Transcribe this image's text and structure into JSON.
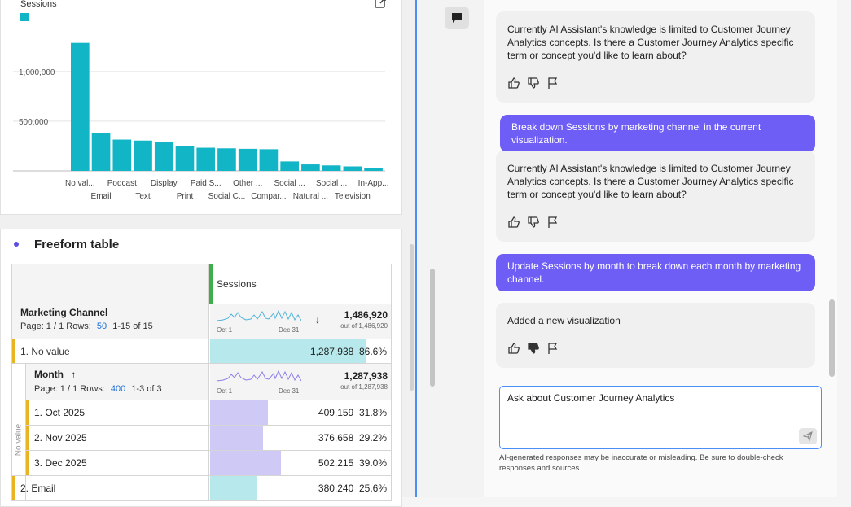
{
  "chart": {
    "title": "Sessions",
    "color": "#12b5c6"
  },
  "chart_data": {
    "type": "bar",
    "title": "Sessions",
    "xlabel": "",
    "ylabel": "",
    "ylim": [
      0,
      1400000
    ],
    "yticks": [
      500000,
      1000000
    ],
    "ytick_labels": [
      "500,000",
      "1,000,000"
    ],
    "categories": [
      "No val...",
      "Email",
      "Podcast",
      "Text",
      "Display",
      "Print",
      "Paid S...",
      "Social C...",
      "Other ...",
      "Compar...",
      "Social ...",
      "Natural ...",
      "Social ...",
      "Television",
      "In-App..."
    ],
    "values": [
      1287938,
      380240,
      315000,
      305000,
      292000,
      250000,
      233000,
      227000,
      222000,
      218000,
      95000,
      65000,
      55000,
      45000,
      30000
    ],
    "series": [
      {
        "name": "Sessions",
        "values": [
          1287938,
          380240,
          315000,
          305000,
          292000,
          250000,
          233000,
          227000,
          222000,
          218000,
          95000,
          65000,
          55000,
          45000,
          30000
        ]
      }
    ],
    "grid": true,
    "legend": "top-left"
  },
  "freeform": {
    "title": "Freeform table",
    "column_header": "Sessions",
    "dimension": {
      "name": "Marketing Channel",
      "page_label": "Page: 1 / 1 Rows:",
      "rows_value": "50",
      "range": "1-15 of 15",
      "spark_start": "Oct 1",
      "spark_end": "Dec 31",
      "total": "1,486,920",
      "total_of": "out of 1,486,920"
    },
    "rows": [
      {
        "label": "1. No value",
        "value": "1,287,938",
        "pct": "86.6%",
        "fraction": 0.866
      }
    ],
    "breakdown": {
      "name": "Month",
      "page_label": "Page: 1 / 1 Rows:",
      "rows_value": "400",
      "range": "1-3 of 3",
      "spark_start": "Oct 1",
      "spark_end": "Dec 31",
      "total": "1,287,938",
      "total_of": "out of 1,287,938",
      "side_label": "No value",
      "rows": [
        {
          "label": "1. Oct 2025",
          "value": "409,159",
          "pct": "31.8%",
          "fraction": 0.318
        },
        {
          "label": "2. Nov 2025",
          "value": "376,658",
          "pct": "29.2%",
          "fraction": 0.292
        },
        {
          "label": "3. Dec 2025",
          "value": "502,215",
          "pct": "39.0%",
          "fraction": 0.39
        }
      ]
    },
    "row2": {
      "label": "2. Email",
      "value": "380,240",
      "pct": "25.6%",
      "fraction": 0.256
    }
  },
  "assistant": {
    "messages": [
      {
        "role": "assistant",
        "text": "Currently AI Assistant's knowledge is limited to Customer Journey Analytics concepts. Is there a Customer Journey Analytics specific term or concept you'd like to learn about?"
      },
      {
        "role": "user",
        "text": "Break down Sessions by marketing channel in the current visualization."
      },
      {
        "role": "assistant",
        "text": "Currently AI Assistant's knowledge is limited to Customer Journey Analytics concepts. Is there a Customer Journey Analytics specific term or concept you'd like to learn about?"
      },
      {
        "role": "user",
        "text": "Update Sessions by month to break down each month by marketing channel."
      },
      {
        "role": "assistant",
        "text": "Added a new visualization"
      }
    ],
    "input_placeholder": "Ask about Customer Journey Analytics",
    "disclaimer": "AI-generated responses may be inaccurate or misleading. Be sure to double-check responses and sources.",
    "accent_color": "#6e5ef6"
  }
}
